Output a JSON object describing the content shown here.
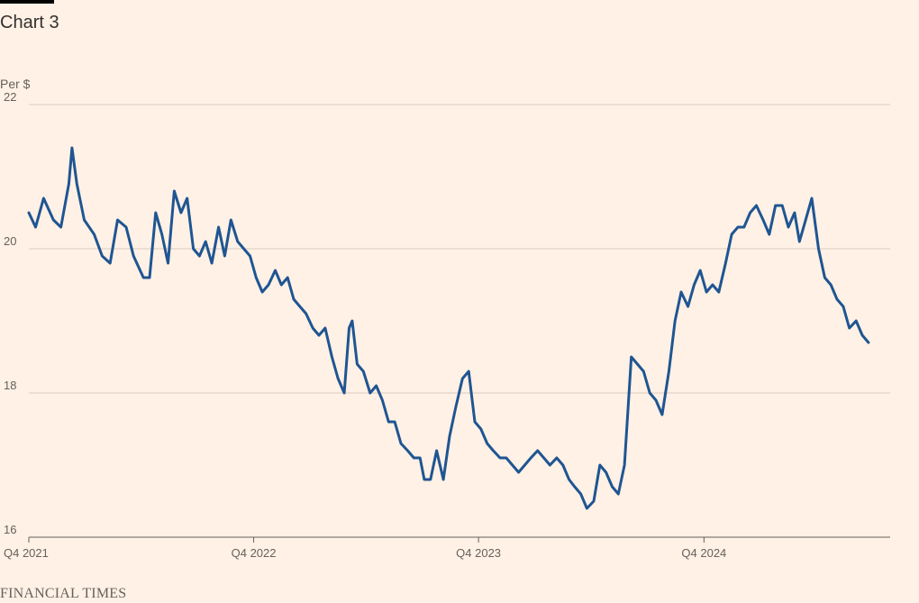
{
  "header": {
    "title": "Chart 3",
    "units": "Per $"
  },
  "footer": {
    "source": "FINANCIAL TIMES"
  },
  "colors": {
    "background": "#fff1e5",
    "line": "#1f5592",
    "grid": "#d9cbbf",
    "axis": "#66605c"
  },
  "chart_data": {
    "type": "line",
    "title": "Chart 3",
    "ylabel": "Per $",
    "ylim": [
      16,
      22
    ],
    "yticks": [
      22,
      20,
      18,
      16
    ],
    "xlim": [
      "2021-10-01",
      "2025-07-01"
    ],
    "xticks": [
      {
        "date": "2021-10-01",
        "label": "Q4 2021"
      },
      {
        "date": "2022-10-01",
        "label": "Q4 2022"
      },
      {
        "date": "2023-10-01",
        "label": "Q4 2023"
      },
      {
        "date": "2024-10-01",
        "label": "Q4 2024"
      }
    ],
    "grid": true,
    "series": [
      {
        "points": [
          [
            "2021-10-01",
            20.5
          ],
          [
            "2021-10-12",
            20.3
          ],
          [
            "2021-10-25",
            20.7
          ],
          [
            "2021-11-10",
            20.4
          ],
          [
            "2021-11-22",
            20.3
          ],
          [
            "2021-12-05",
            20.9
          ],
          [
            "2021-12-10",
            21.4
          ],
          [
            "2021-12-18",
            20.9
          ],
          [
            "2021-12-30",
            20.4
          ],
          [
            "2022-01-15",
            20.2
          ],
          [
            "2022-01-28",
            19.9
          ],
          [
            "2022-02-10",
            19.8
          ],
          [
            "2022-02-22",
            20.4
          ],
          [
            "2022-03-08",
            20.3
          ],
          [
            "2022-03-20",
            19.9
          ],
          [
            "2022-04-05",
            19.6
          ],
          [
            "2022-04-15",
            19.6
          ],
          [
            "2022-04-25",
            20.5
          ],
          [
            "2022-05-05",
            20.2
          ],
          [
            "2022-05-15",
            19.8
          ],
          [
            "2022-05-25",
            20.8
          ],
          [
            "2022-06-05",
            20.5
          ],
          [
            "2022-06-15",
            20.7
          ],
          [
            "2022-06-25",
            20.0
          ],
          [
            "2022-07-05",
            19.9
          ],
          [
            "2022-07-15",
            20.1
          ],
          [
            "2022-07-25",
            19.8
          ],
          [
            "2022-08-05",
            20.3
          ],
          [
            "2022-08-15",
            19.9
          ],
          [
            "2022-08-25",
            20.4
          ],
          [
            "2022-09-05",
            20.1
          ],
          [
            "2022-09-15",
            20.0
          ],
          [
            "2022-09-25",
            19.9
          ],
          [
            "2022-10-05",
            19.6
          ],
          [
            "2022-10-15",
            19.4
          ],
          [
            "2022-10-25",
            19.5
          ],
          [
            "2022-11-05",
            19.7
          ],
          [
            "2022-11-15",
            19.5
          ],
          [
            "2022-11-25",
            19.6
          ],
          [
            "2022-12-05",
            19.3
          ],
          [
            "2022-12-15",
            19.2
          ],
          [
            "2022-12-25",
            19.1
          ],
          [
            "2023-01-05",
            18.9
          ],
          [
            "2023-01-15",
            18.8
          ],
          [
            "2023-01-25",
            18.9
          ],
          [
            "2023-02-05",
            18.5
          ],
          [
            "2023-02-15",
            18.2
          ],
          [
            "2023-02-25",
            18.0
          ],
          [
            "2023-03-05",
            18.9
          ],
          [
            "2023-03-10",
            19.0
          ],
          [
            "2023-03-18",
            18.4
          ],
          [
            "2023-03-28",
            18.3
          ],
          [
            "2023-04-08",
            18.0
          ],
          [
            "2023-04-18",
            18.1
          ],
          [
            "2023-04-28",
            17.9
          ],
          [
            "2023-05-08",
            17.6
          ],
          [
            "2023-05-18",
            17.6
          ],
          [
            "2023-05-28",
            17.3
          ],
          [
            "2023-06-08",
            17.2
          ],
          [
            "2023-06-18",
            17.1
          ],
          [
            "2023-06-28",
            17.1
          ],
          [
            "2023-07-05",
            16.8
          ],
          [
            "2023-07-15",
            16.8
          ],
          [
            "2023-07-25",
            17.2
          ],
          [
            "2023-08-05",
            16.8
          ],
          [
            "2023-08-15",
            17.4
          ],
          [
            "2023-08-25",
            17.8
          ],
          [
            "2023-09-05",
            18.2
          ],
          [
            "2023-09-15",
            18.3
          ],
          [
            "2023-09-25",
            17.6
          ],
          [
            "2023-10-05",
            17.5
          ],
          [
            "2023-10-15",
            17.3
          ],
          [
            "2023-10-25",
            17.2
          ],
          [
            "2023-11-05",
            17.1
          ],
          [
            "2023-11-15",
            17.1
          ],
          [
            "2023-11-25",
            17.0
          ],
          [
            "2023-12-05",
            16.9
          ],
          [
            "2023-12-15",
            17.0
          ],
          [
            "2023-12-25",
            17.1
          ],
          [
            "2024-01-05",
            17.2
          ],
          [
            "2024-01-15",
            17.1
          ],
          [
            "2024-01-25",
            17.0
          ],
          [
            "2024-02-05",
            17.1
          ],
          [
            "2024-02-15",
            17.0
          ],
          [
            "2024-02-25",
            16.8
          ],
          [
            "2024-03-05",
            16.7
          ],
          [
            "2024-03-15",
            16.6
          ],
          [
            "2024-03-25",
            16.4
          ],
          [
            "2024-04-05",
            16.5
          ],
          [
            "2024-04-15",
            17.0
          ],
          [
            "2024-04-25",
            16.9
          ],
          [
            "2024-05-05",
            16.7
          ],
          [
            "2024-05-15",
            16.6
          ],
          [
            "2024-05-25",
            17.0
          ],
          [
            "2024-06-05",
            18.5
          ],
          [
            "2024-06-15",
            18.4
          ],
          [
            "2024-06-25",
            18.3
          ],
          [
            "2024-07-05",
            18.0
          ],
          [
            "2024-07-15",
            17.9
          ],
          [
            "2024-07-25",
            17.7
          ],
          [
            "2024-08-05",
            18.3
          ],
          [
            "2024-08-15",
            19.0
          ],
          [
            "2024-08-25",
            19.4
          ],
          [
            "2024-09-05",
            19.2
          ],
          [
            "2024-09-15",
            19.5
          ],
          [
            "2024-09-25",
            19.7
          ],
          [
            "2024-10-05",
            19.4
          ],
          [
            "2024-10-15",
            19.5
          ],
          [
            "2024-10-25",
            19.4
          ],
          [
            "2024-11-05",
            19.8
          ],
          [
            "2024-11-15",
            20.2
          ],
          [
            "2024-11-25",
            20.3
          ],
          [
            "2024-12-05",
            20.3
          ],
          [
            "2024-12-15",
            20.5
          ],
          [
            "2024-12-25",
            20.6
          ],
          [
            "2025-01-05",
            20.4
          ],
          [
            "2025-01-15",
            20.2
          ],
          [
            "2025-01-25",
            20.6
          ],
          [
            "2025-02-05",
            20.6
          ],
          [
            "2025-02-15",
            20.3
          ],
          [
            "2025-02-25",
            20.5
          ],
          [
            "2025-03-05",
            20.1
          ],
          [
            "2025-03-15",
            20.4
          ],
          [
            "2025-03-25",
            20.7
          ],
          [
            "2025-04-05",
            20.0
          ],
          [
            "2025-04-15",
            19.6
          ],
          [
            "2025-04-25",
            19.5
          ],
          [
            "2025-05-05",
            19.3
          ],
          [
            "2025-05-15",
            19.2
          ],
          [
            "2025-05-25",
            18.9
          ],
          [
            "2025-06-05",
            19.0
          ],
          [
            "2025-06-15",
            18.8
          ],
          [
            "2025-06-25",
            18.7
          ]
        ]
      }
    ]
  }
}
